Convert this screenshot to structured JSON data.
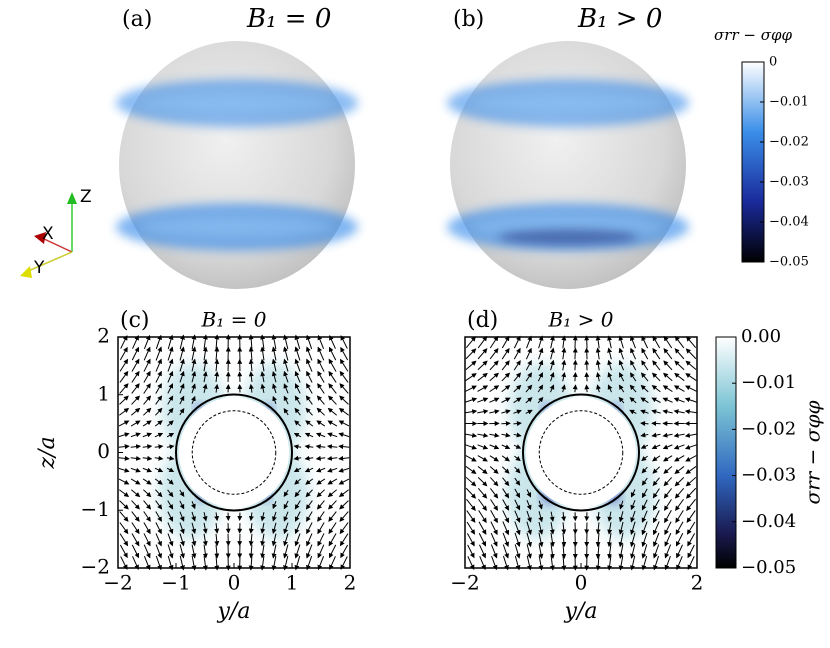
{
  "chart_data": [
    {
      "type": "render",
      "label": "(a)",
      "title": "B₁ = 0",
      "triad": [
        "Z",
        "X",
        "Y"
      ],
      "colorbar": {
        "label": "σrr − σφφ",
        "lim": [
          -0.05,
          0
        ],
        "ticks": [
          0,
          {
            "value": -0.01,
            "label": "−0.01"
          },
          {
            "value": -0.02,
            "label": "−0.02"
          },
          {
            "value": -0.03,
            "label": "−0.03"
          },
          {
            "value": -0.04,
            "label": "−0.04"
          },
          {
            "value": -0.05,
            "label": "−0.05"
          }
        ]
      }
    },
    {
      "type": "render",
      "label": "(b)",
      "title": "B₁ > 0"
    },
    {
      "type": "quiver",
      "label": "(c)",
      "title": "B₁ = 0",
      "xlabel": "y/a",
      "ylabel": "z/a",
      "xlim": [
        -2,
        2
      ],
      "ylim": [
        -2,
        2
      ],
      "xticks": [
        {
          "value": -2,
          "label": "−2"
        },
        {
          "value": -1,
          "label": "−1"
        },
        0,
        1,
        2
      ],
      "yticks": [
        {
          "value": -2,
          "label": "−2"
        },
        {
          "value": -1,
          "label": "−1"
        },
        0,
        1,
        2
      ]
    },
    {
      "type": "quiver",
      "label": "(d)",
      "title": "B₁ > 0",
      "xlabel": "y/a",
      "xlim": [
        -2,
        2
      ],
      "ylim": [
        -2,
        2
      ],
      "xticks": [
        {
          "value": -2,
          "label": "−2"
        },
        0,
        2
      ],
      "yticks": [],
      "colorbar": {
        "label": "σrr − σφφ",
        "lim": [
          -0.05,
          0
        ],
        "ticks": [
          {
            "value": 0,
            "label": "0.00"
          },
          {
            "value": -0.01,
            "label": "−0.01"
          },
          {
            "value": -0.02,
            "label": "−0.02"
          },
          {
            "value": -0.03,
            "label": "−0.03"
          },
          {
            "value": -0.04,
            "label": "−0.04"
          },
          {
            "value": -0.05,
            "label": "−0.05"
          }
        ]
      }
    }
  ]
}
